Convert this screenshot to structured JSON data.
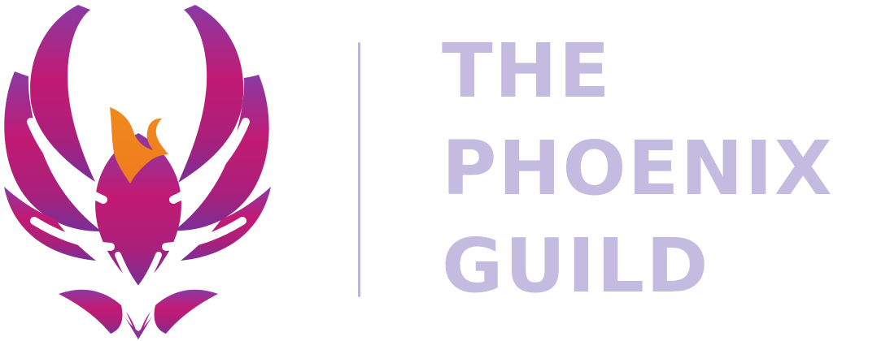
{
  "logo": {
    "name": "phoenix-guild-logo",
    "emblem_icon": "phoenix-icon",
    "wordmark_lines": [
      "THE",
      "PHOENIX",
      "GUILD"
    ]
  },
  "colors": {
    "wordmark": "#c3bce0",
    "divider": "#bdb4dd",
    "gradient_top": "#8a3aa3",
    "gradient_mid": "#c21a74",
    "gradient_bottom": "#7a2f97",
    "accent_orange": "#f08a1c"
  }
}
